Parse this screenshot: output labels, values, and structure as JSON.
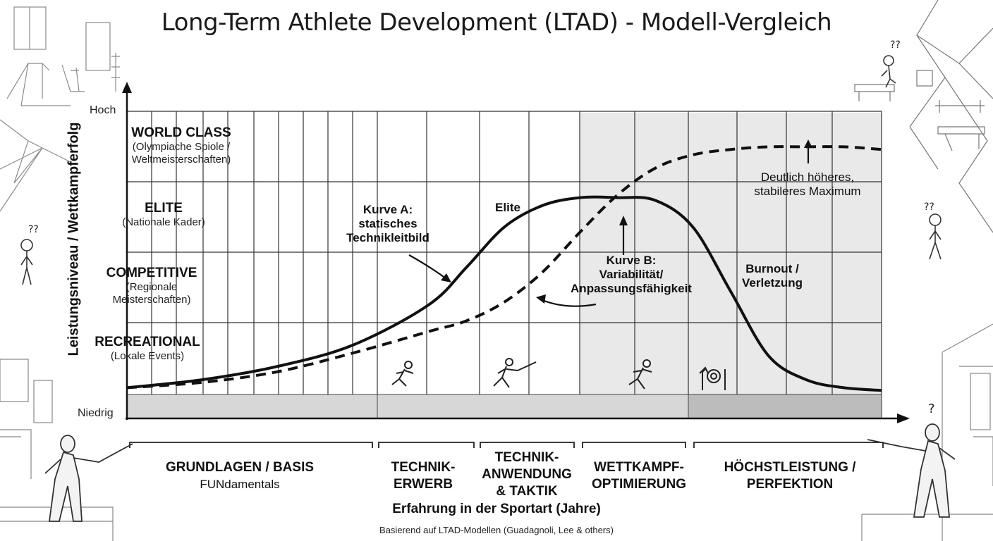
{
  "title": "Long-Term Athlete Development (LTAD) - Modell-Vergleich",
  "colors": {
    "line": "#111111",
    "grid": "#2a2a2a",
    "shade": "#e6e6e6",
    "band_light": "#d9d9d9",
    "band_dark": "#bdbdbd"
  },
  "chart_data": {
    "type": "line",
    "title": "Long-Term Athlete Development (LTAD) - Modell-Vergleich",
    "xlabel": "Erfahrung in der Sportart (Jahre)",
    "ylabel": "Leistungsniveau / Wettkampferfolg",
    "y_ticks": [
      "Niedrig",
      "Hoch"
    ],
    "x_range": [
      0,
      1
    ],
    "y_range": [
      0,
      1
    ],
    "grid": true,
    "levels": [
      {
        "name": "WORLD CLASS",
        "sub": "(Olympiache Spiole / Weltmeisterschaften)"
      },
      {
        "name": "ELITE",
        "sub": "(Nationale Kader)"
      },
      {
        "name": "COMPETITIVE",
        "sub": "(Regionale Meisterschaften)"
      },
      {
        "name": "RECREATIONAL",
        "sub": "(Lokale Events)"
      }
    ],
    "phases": [
      {
        "label": "GRUNDLAGEN / BASIS",
        "sub": "FUNdamentals",
        "range": [
          0,
          0.333
        ]
      },
      {
        "label": "TECHNIK- ERWERB",
        "range": [
          0.333,
          0.469
        ]
      },
      {
        "label": "TECHNIK- ANWENDUNG & TAKTIK",
        "range": [
          0.469,
          0.604
        ]
      },
      {
        "label": "WETTKAMPF- OPTIMIERUNG",
        "range": [
          0.604,
          0.747
        ]
      },
      {
        "label": "HÖCHSTLEISTUNG / PERFEKTION",
        "range": [
          0.747,
          1
        ]
      }
    ],
    "series": [
      {
        "name": "Kurve A: statisches Technikleitbild",
        "style": "solid",
        "x": [
          0,
          0.1,
          0.2,
          0.3,
          0.4,
          0.45,
          0.5,
          0.55,
          0.6,
          0.65,
          0.7,
          0.75,
          0.8,
          0.85,
          0.9,
          0.95,
          1
        ],
        "y": [
          0.02,
          0.05,
          0.1,
          0.18,
          0.33,
          0.47,
          0.62,
          0.7,
          0.73,
          0.73,
          0.72,
          0.62,
          0.38,
          0.14,
          0.05,
          0.02,
          0.01
        ]
      },
      {
        "name": "Kurve B: Variabilität/ Anpassungsfähigkeit",
        "style": "dashed",
        "x": [
          0,
          0.1,
          0.2,
          0.3,
          0.4,
          0.45,
          0.5,
          0.55,
          0.6,
          0.65,
          0.7,
          0.75,
          0.8,
          0.85,
          0.9,
          0.95,
          1
        ],
        "y": [
          0.02,
          0.04,
          0.08,
          0.15,
          0.23,
          0.27,
          0.34,
          0.45,
          0.6,
          0.74,
          0.84,
          0.89,
          0.91,
          0.92,
          0.92,
          0.92,
          0.91
        ]
      }
    ],
    "annotations": [
      {
        "text": "Kurve A: statisches Technikleitbild"
      },
      {
        "text": "Elite"
      },
      {
        "text": "Kurve B: Variabilität/ Anpassungsfähigkeit"
      },
      {
        "text": "Burnout / Verletzung"
      },
      {
        "text": "Deutlich höheres, stabileres Maximum"
      }
    ]
  },
  "source": "Basierend auf LTAD-Modellen (Guadagnoli, Lee & others)",
  "ticks": {
    "hoch": "Hoch",
    "niedrig": "Niedrig"
  },
  "labels": {
    "l0h": "WORLD CLASS",
    "l0s1": "(Olympiache Spiole /",
    "l0s2": "Weltmeisterschaften)",
    "l1h": "ELITE",
    "l1s1": "(Nationale Kader)",
    "l2h": "COMPETITIVE",
    "l2s1": "(Regionale",
    "l2s2": "Meisterschaften)",
    "l3h": "RECREATIONAL",
    "l3s1": "(Lokale Events)"
  },
  "ann": {
    "a1": "Kurve A:",
    "a2": "statisches",
    "a3": "Technikleitbild",
    "elite": "Elite",
    "b1": "Kurve B:",
    "b2": "Variabilität/",
    "b3": "Anpassungsfähigkeit",
    "burn1": "Burnout /",
    "burn2": "Verletzung",
    "max1": "Deutlich höheres,",
    "max2": "stabileres Maximum"
  },
  "phases_text": {
    "p0a": "GRUNDLAGEN / BASIS",
    "p0b": "FUNdamentals",
    "p1a": "TECHNIK-",
    "p1b": "ERWERB",
    "p2a": "TECHNIK-",
    "p2b": "ANWENDUNG",
    "p2c": "& TAKTIK",
    "p3a": "WETTKAMPF-",
    "p3b": "OPTIMIERUNG",
    "p4a": "HÖCHSTLEISTUNG /",
    "p4b": "PERFEKTION"
  }
}
